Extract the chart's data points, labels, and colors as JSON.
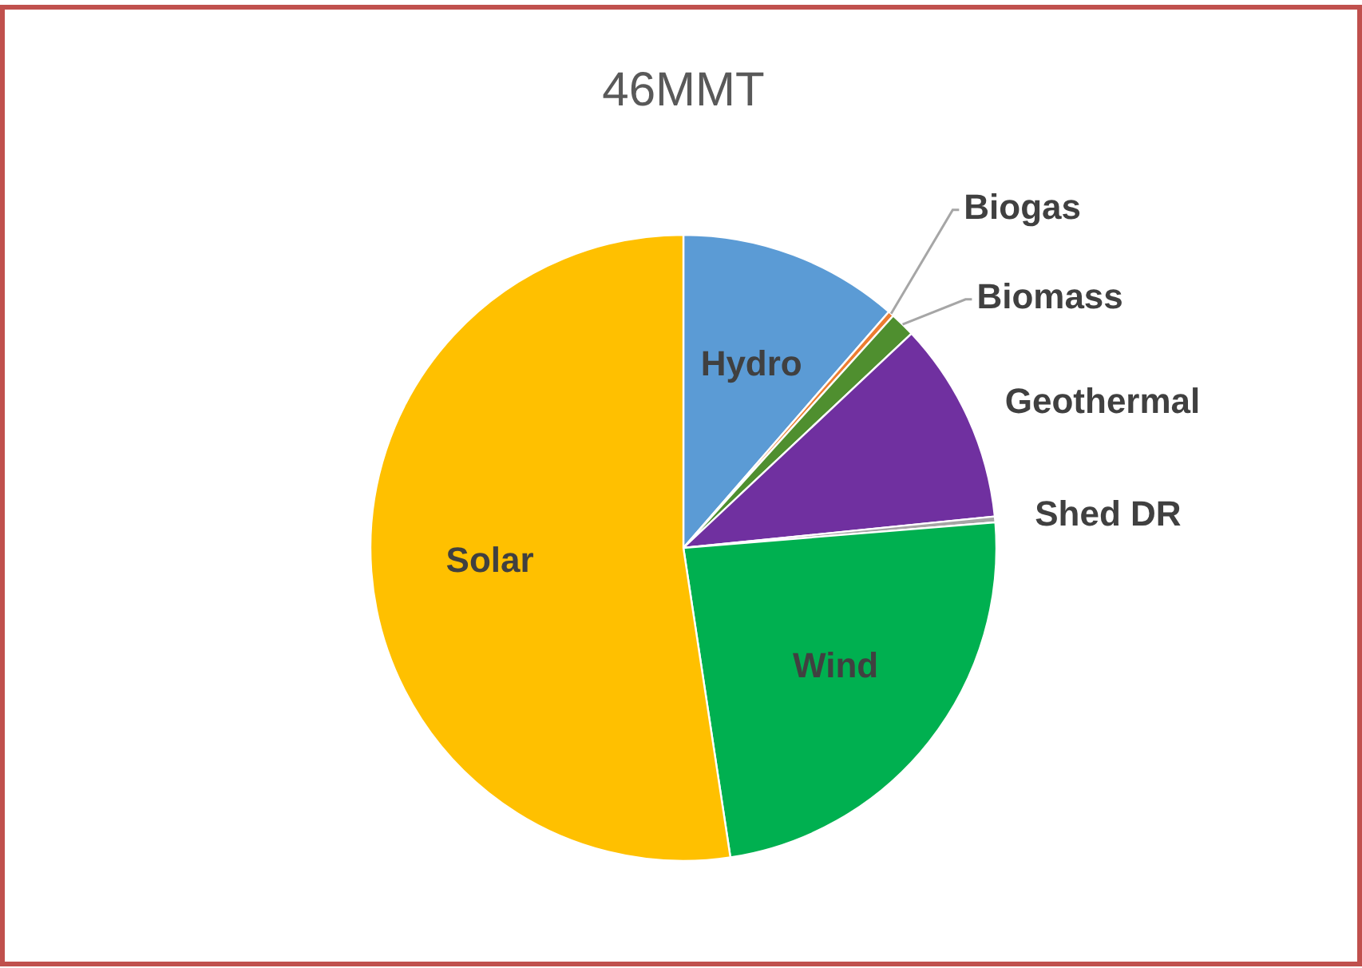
{
  "chart_data": {
    "type": "pie",
    "title": "46MMT",
    "categories": [
      "Hydro",
      "Biogas",
      "Biomass",
      "Geothermal",
      "Shed DR",
      "Wind",
      "Solar"
    ],
    "values": [
      11.4,
      0.3,
      1.3,
      10.4,
      0.3,
      23.9,
      52.4
    ],
    "colors": [
      "#5b9bd5",
      "#ed7d31",
      "#4f8f2f",
      "#7030a0",
      "#a5a5a5",
      "#00b050",
      "#ffc000"
    ]
  }
}
